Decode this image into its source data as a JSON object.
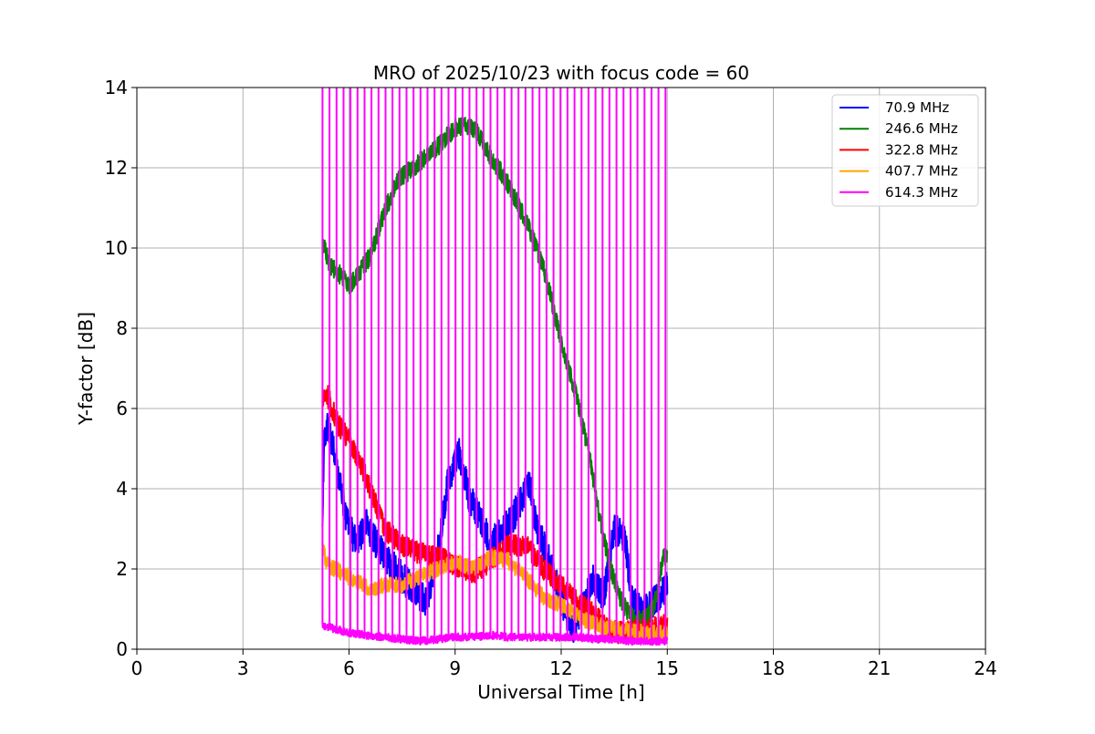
{
  "chart_data": {
    "type": "line",
    "title": "MRO of 2025/10/23 with focus code = 60",
    "xlabel": "Universal Time [h]",
    "ylabel": "Y-factor [dB]",
    "xlim": [
      0,
      24
    ],
    "ylim": [
      0,
      14
    ],
    "xticks": [
      0,
      3,
      6,
      9,
      12,
      15,
      18,
      21,
      24
    ],
    "yticks": [
      0,
      2,
      4,
      6,
      8,
      10,
      12,
      14
    ],
    "grid": true,
    "legend_position": "top-right",
    "series": [
      {
        "name": " 70.9 MHz",
        "color": "#0000ff",
        "noise": 0.5,
        "points": [
          [
            5.25,
            3.2
          ],
          [
            5.3,
            5.2
          ],
          [
            5.4,
            5.6
          ],
          [
            5.6,
            4.9
          ],
          [
            5.8,
            3.8
          ],
          [
            6.0,
            3.0
          ],
          [
            6.2,
            2.7
          ],
          [
            6.5,
            3.1
          ],
          [
            6.8,
            2.6
          ],
          [
            7.0,
            2.3
          ],
          [
            7.3,
            2.0
          ],
          [
            7.6,
            1.7
          ],
          [
            7.9,
            1.4
          ],
          [
            8.2,
            1.2
          ],
          [
            8.5,
            2.4
          ],
          [
            8.8,
            4.2
          ],
          [
            9.1,
            4.9
          ],
          [
            9.4,
            3.8
          ],
          [
            9.7,
            3.3
          ],
          [
            10.0,
            2.6
          ],
          [
            10.3,
            2.9
          ],
          [
            10.6,
            3.2
          ],
          [
            10.9,
            3.8
          ],
          [
            11.1,
            4.2
          ],
          [
            11.3,
            3.0
          ],
          [
            11.6,
            2.4
          ],
          [
            12.0,
            1.2
          ],
          [
            12.3,
            0.5
          ],
          [
            12.6,
            1.0
          ],
          [
            12.9,
            1.8
          ],
          [
            13.2,
            1.3
          ],
          [
            13.5,
            3.0
          ],
          [
            13.8,
            2.8
          ],
          [
            14.0,
            1.2
          ],
          [
            14.3,
            0.9
          ],
          [
            14.6,
            1.2
          ],
          [
            15.0,
            1.6
          ]
        ]
      },
      {
        "name": "246.6 MHz",
        "color": "#008000",
        "noise": 0.3,
        "points": [
          [
            5.25,
            10.1
          ],
          [
            5.5,
            9.5
          ],
          [
            5.8,
            9.3
          ],
          [
            6.0,
            9.0
          ],
          [
            6.3,
            9.4
          ],
          [
            6.6,
            9.8
          ],
          [
            7.0,
            10.9
          ],
          [
            7.4,
            11.7
          ],
          [
            7.8,
            12.0
          ],
          [
            8.2,
            12.3
          ],
          [
            8.6,
            12.6
          ],
          [
            9.0,
            13.0
          ],
          [
            9.3,
            13.1
          ],
          [
            9.6,
            12.9
          ],
          [
            10.0,
            12.3
          ],
          [
            10.5,
            11.6
          ],
          [
            11.0,
            10.7
          ],
          [
            11.5,
            9.5
          ],
          [
            12.0,
            7.7
          ],
          [
            12.4,
            6.4
          ],
          [
            12.8,
            4.8
          ],
          [
            13.1,
            3.2
          ],
          [
            13.4,
            2.0
          ],
          [
            13.7,
            1.2
          ],
          [
            14.0,
            0.8
          ],
          [
            14.3,
            0.7
          ],
          [
            14.6,
            1.0
          ],
          [
            14.9,
            2.3
          ],
          [
            15.0,
            2.4
          ]
        ]
      },
      {
        "name": "322.8 MHz",
        "color": "#ff0000",
        "noise": 0.35,
        "points": [
          [
            5.25,
            6.2
          ],
          [
            5.4,
            6.3
          ],
          [
            5.7,
            5.6
          ],
          [
            6.0,
            5.2
          ],
          [
            6.3,
            4.7
          ],
          [
            6.6,
            4.0
          ],
          [
            7.0,
            3.0
          ],
          [
            7.5,
            2.6
          ],
          [
            8.0,
            2.4
          ],
          [
            8.5,
            2.3
          ],
          [
            9.0,
            2.1
          ],
          [
            9.5,
            1.9
          ],
          [
            10.0,
            2.2
          ],
          [
            10.5,
            2.6
          ],
          [
            11.0,
            2.6
          ],
          [
            11.5,
            2.0
          ],
          [
            12.0,
            1.6
          ],
          [
            12.3,
            1.3
          ],
          [
            12.6,
            1.1
          ],
          [
            13.0,
            0.8
          ],
          [
            13.3,
            0.5
          ],
          [
            13.6,
            0.4
          ],
          [
            14.0,
            0.45
          ],
          [
            14.5,
            0.5
          ],
          [
            15.0,
            0.6
          ]
        ]
      },
      {
        "name": "407.7 MHz",
        "color": "#ffa500",
        "noise": 0.25,
        "points": [
          [
            5.25,
            2.5
          ],
          [
            5.4,
            2.1
          ],
          [
            5.8,
            1.9
          ],
          [
            6.2,
            1.7
          ],
          [
            6.6,
            1.5
          ],
          [
            7.0,
            1.6
          ],
          [
            7.5,
            1.6
          ],
          [
            8.0,
            1.8
          ],
          [
            8.5,
            2.0
          ],
          [
            9.0,
            2.2
          ],
          [
            9.5,
            2.0
          ],
          [
            10.0,
            2.3
          ],
          [
            10.5,
            2.2
          ],
          [
            11.0,
            1.8
          ],
          [
            11.5,
            1.3
          ],
          [
            12.0,
            1.1
          ],
          [
            12.5,
            0.8
          ],
          [
            13.0,
            0.6
          ],
          [
            13.5,
            0.5
          ],
          [
            14.0,
            0.45
          ],
          [
            14.5,
            0.4
          ],
          [
            15.0,
            0.4
          ]
        ]
      },
      {
        "name": "614.3 MHz",
        "color": "#ff00ff",
        "noise": 0.12,
        "spike_count": 50,
        "spike_start": 5.25,
        "spike_end": 14.95,
        "points": [
          [
            5.25,
            0.6
          ],
          [
            5.6,
            0.5
          ],
          [
            6.0,
            0.4
          ],
          [
            6.5,
            0.35
          ],
          [
            7.0,
            0.3
          ],
          [
            7.5,
            0.25
          ],
          [
            8.0,
            0.2
          ],
          [
            8.5,
            0.25
          ],
          [
            9.0,
            0.3
          ],
          [
            9.5,
            0.3
          ],
          [
            10.0,
            0.35
          ],
          [
            10.5,
            0.3
          ],
          [
            11.0,
            0.3
          ],
          [
            11.5,
            0.3
          ],
          [
            12.0,
            0.3
          ],
          [
            12.5,
            0.3
          ],
          [
            13.0,
            0.25
          ],
          [
            13.5,
            0.25
          ],
          [
            14.0,
            0.2
          ],
          [
            14.5,
            0.2
          ],
          [
            15.0,
            0.2
          ]
        ]
      }
    ]
  }
}
